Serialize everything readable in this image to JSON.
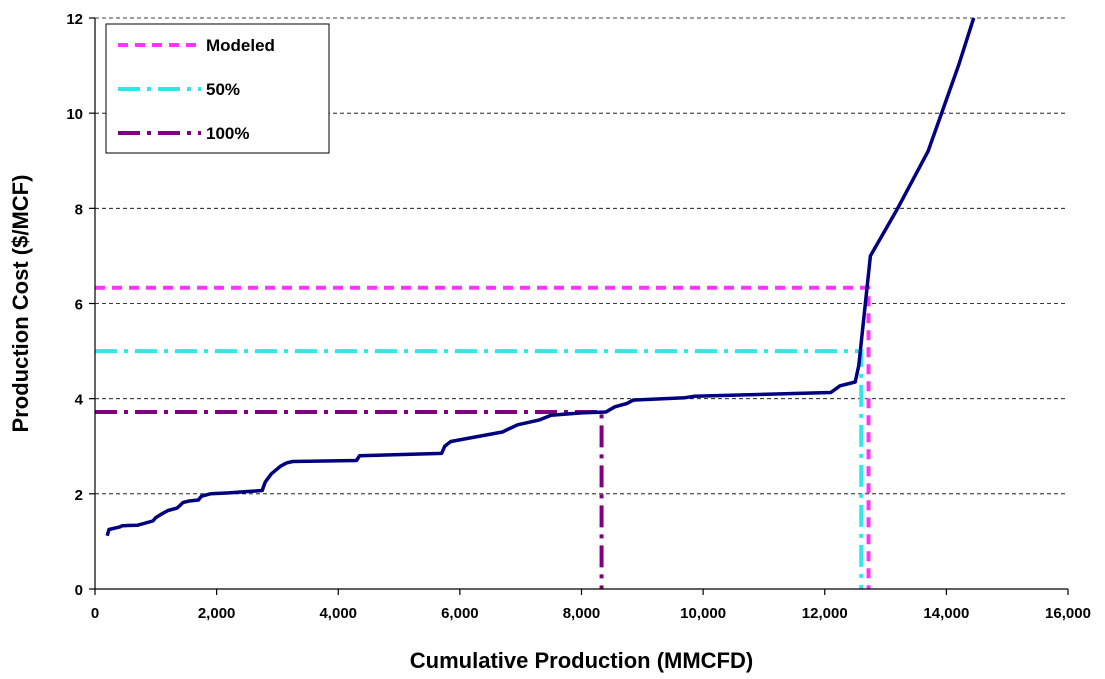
{
  "chart_data": {
    "type": "line",
    "title": "",
    "xlabel": "Cumulative Production (MMCFD)",
    "ylabel": "Production Cost ($/MCF)",
    "xlim": [
      0,
      16000
    ],
    "ylim": [
      0,
      12
    ],
    "x_ticks": [
      0,
      2000,
      4000,
      6000,
      8000,
      10000,
      12000,
      14000,
      16000
    ],
    "x_tick_labels": [
      "0",
      "2,000",
      "4,000",
      "6,000",
      "8,000",
      "10,000",
      "12,000",
      "14,000",
      "16,000"
    ],
    "y_ticks": [
      0,
      2,
      4,
      6,
      8,
      10,
      12
    ],
    "y_tick_labels": [
      "0",
      "2",
      "4",
      "6",
      "8",
      "10",
      "12"
    ],
    "grid": "horizontal dashed",
    "legend": {
      "placement": "top-left",
      "entries": [
        {
          "label": "Modeled",
          "color": "#ff33ff",
          "dash": "dash"
        },
        {
          "label": "50%",
          "color": "#33e6e6",
          "dash": "dash-dot"
        },
        {
          "label": "100%",
          "color": "#800080",
          "dash": "dash-dot"
        }
      ]
    },
    "supply_curve": {
      "color": "#000080",
      "points": [
        [
          200,
          1.12
        ],
        [
          230,
          1.25
        ],
        [
          400,
          1.3
        ],
        [
          450,
          1.33
        ],
        [
          700,
          1.34
        ],
        [
          950,
          1.43
        ],
        [
          1000,
          1.5
        ],
        [
          1100,
          1.58
        ],
        [
          1200,
          1.65
        ],
        [
          1350,
          1.7
        ],
        [
          1450,
          1.82
        ],
        [
          1550,
          1.85
        ],
        [
          1700,
          1.87
        ],
        [
          1750,
          1.95
        ],
        [
          1900,
          2.0
        ],
        [
          2200,
          2.02
        ],
        [
          2750,
          2.07
        ],
        [
          2800,
          2.25
        ],
        [
          2900,
          2.42
        ],
        [
          3050,
          2.58
        ],
        [
          3150,
          2.65
        ],
        [
          3250,
          2.68
        ],
        [
          4300,
          2.7
        ],
        [
          4350,
          2.8
        ],
        [
          5700,
          2.85
        ],
        [
          5750,
          3.0
        ],
        [
          5850,
          3.1
        ],
        [
          6700,
          3.3
        ],
        [
          6950,
          3.45
        ],
        [
          7300,
          3.55
        ],
        [
          7500,
          3.65
        ],
        [
          8000,
          3.7
        ],
        [
          8400,
          3.72
        ],
        [
          8550,
          3.83
        ],
        [
          8750,
          3.9
        ],
        [
          8850,
          3.97
        ],
        [
          9700,
          4.02
        ],
        [
          9850,
          4.05
        ],
        [
          12100,
          4.13
        ],
        [
          12250,
          4.27
        ],
        [
          12500,
          4.35
        ],
        [
          12560,
          4.7
        ],
        [
          12750,
          7.0
        ],
        [
          13200,
          8.0
        ],
        [
          13700,
          9.2
        ],
        [
          14200,
          11.0
        ],
        [
          14450,
          12.0
        ]
      ]
    },
    "series": [
      {
        "name": "Modeled",
        "color": "#ff33ff",
        "dash": "dash",
        "x": [
          0,
          12720,
          12720
        ],
        "y": [
          6.33,
          6.33,
          0
        ]
      },
      {
        "name": "50%",
        "color": "#33e6e6",
        "dash": "dash-dot",
        "x": [
          0,
          12600,
          12600
        ],
        "y": [
          5.0,
          5.0,
          0
        ]
      },
      {
        "name": "100%",
        "color": "#800080",
        "dash": "dash-dot",
        "x": [
          0,
          8330,
          8330
        ],
        "y": [
          3.72,
          3.72,
          0
        ]
      }
    ]
  }
}
